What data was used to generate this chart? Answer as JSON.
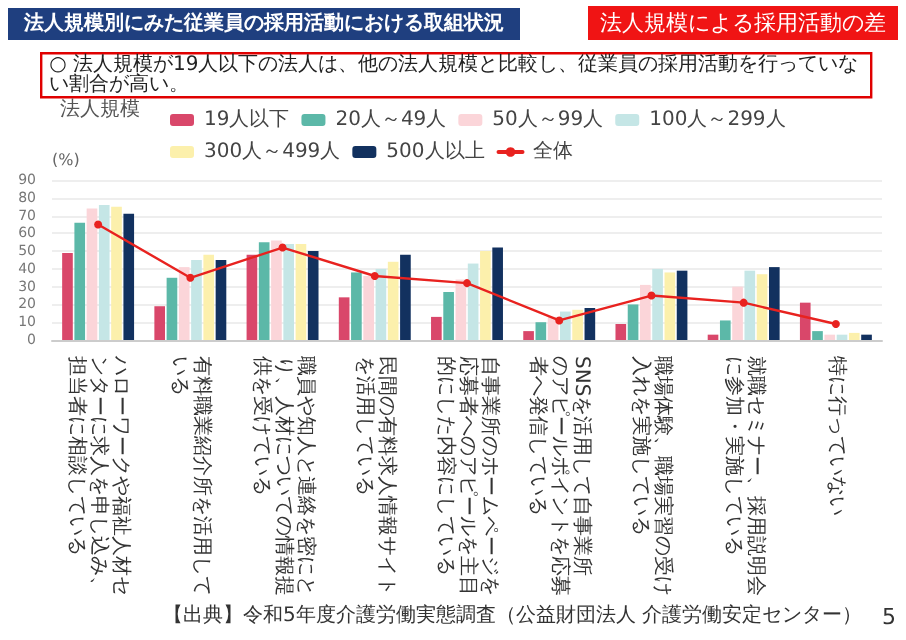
{
  "chart_data": {
    "type": "bar",
    "title": "法人規模別にみた従業員の採用活動における取組状況",
    "subtitle": "法人規模による採用活動の差",
    "ylabel": "(%)",
    "legend_title": "法人規模",
    "legend": "top",
    "grid": "y",
    "marker": "circle",
    "line_style": "solid",
    "annotations": [
      "○ 法人規模が19人以下の法人は、他の法人規模と比較し、従業員の採用活動を行っていない割合が高い。",
      "【出典】令和5年度介護労働実態調査（公益財団法人 介護労働安定センター）",
      "5"
    ],
    "categories": [
      "ハローワークや福祉人材センターに求人を申し込み、担当者に相談している",
      "有料職業紹介所を活用している",
      "職員や知人と連絡を密にとり、人材についての情報提供を受けている",
      "民間の有料求人情報サイトを活用している",
      "自事業所のホームページを応募者へのアピールを主目的にした内容にしている",
      "SNSを活用して自事業所のアピールポイントを応募者へ発信している",
      "職場体験、職場実習の受け入れを実施している",
      "就職セミナー、採用説明会に参加・実施している",
      "特に行っていない"
    ],
    "ylim": [
      0,
      90
    ],
    "yticks": [
      0,
      10,
      20,
      30,
      40,
      50,
      60,
      70,
      80,
      90
    ],
    "series": [
      {
        "name": "19人以下",
        "color": "#d9476a",
        "values": [
          49,
          19,
          48,
          24,
          13,
          5,
          9,
          3,
          21
        ]
      },
      {
        "name": "20人～49人",
        "color": "#5cb8a8",
        "values": [
          66,
          35,
          55,
          38,
          27,
          10,
          20,
          11,
          5
        ]
      },
      {
        "name": "50人～99人",
        "color": "#fbd5d9",
        "values": [
          74,
          41,
          56,
          36,
          34,
          13,
          31,
          30,
          3
        ]
      },
      {
        "name": "100人～299人",
        "color": "#c5e6e6",
        "values": [
          76,
          45,
          54,
          40,
          43,
          16,
          40,
          39,
          3
        ]
      },
      {
        "name": "300人～499人",
        "color": "#fcf0ac",
        "values": [
          75,
          48,
          54,
          44,
          50,
          17,
          38,
          37,
          4
        ]
      },
      {
        "name": "500人以上",
        "color": "#12315f",
        "values": [
          71,
          45,
          50,
          48,
          52,
          18,
          39,
          41,
          3
        ]
      },
      {
        "name": "全体",
        "type": "line",
        "color": "#e8221f",
        "values": [
          65,
          35,
          52,
          36,
          32,
          11,
          25,
          21,
          9
        ]
      }
    ]
  }
}
